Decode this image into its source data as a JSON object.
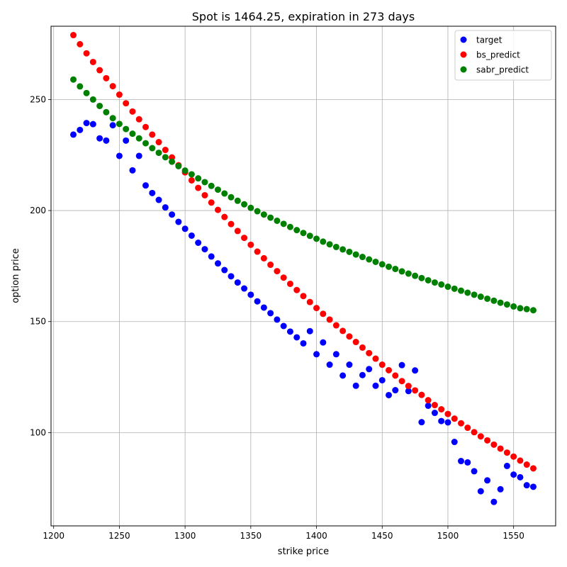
{
  "chart_data": {
    "type": "scatter",
    "title": "Spot is 1464.25, expiration in 273 days",
    "xlabel": "strike price",
    "ylabel": "option price",
    "xlim": [
      1198,
      1582
    ],
    "ylim": [
      58,
      283
    ],
    "xticks": [
      1200,
      1250,
      1300,
      1350,
      1400,
      1450,
      1500,
      1550
    ],
    "yticks": [
      100,
      150,
      200,
      250
    ],
    "grid": true,
    "legend_position": "top-right",
    "x": [
      1215,
      1220,
      1225,
      1230,
      1235,
      1240,
      1245,
      1250,
      1255,
      1260,
      1265,
      1270,
      1275,
      1280,
      1285,
      1290,
      1295,
      1300,
      1305,
      1310,
      1315,
      1320,
      1325,
      1330,
      1335,
      1340,
      1345,
      1350,
      1355,
      1360,
      1365,
      1370,
      1375,
      1380,
      1385,
      1390,
      1395,
      1400,
      1405,
      1410,
      1415,
      1420,
      1425,
      1430,
      1435,
      1440,
      1445,
      1450,
      1455,
      1460,
      1465,
      1470,
      1475,
      1480,
      1485,
      1490,
      1495,
      1500,
      1505,
      1510,
      1515,
      1520,
      1525,
      1530,
      1535,
      1540,
      1545,
      1550,
      1555,
      1560,
      1565
    ],
    "series": [
      {
        "name": "target",
        "color": "#0000ff",
        "values": [
          234.2,
          236.3,
          239.4,
          238.9,
          232.5,
          231.5,
          238.4,
          224.6,
          231.5,
          218.1,
          224.6,
          211.3,
          207.9,
          204.8,
          201.4,
          198.2,
          194.9,
          191.8,
          188.7,
          185.5,
          182.6,
          179.3,
          176.2,
          173.2,
          170.4,
          167.6,
          164.9,
          162.1,
          159.1,
          156.3,
          153.8,
          150.9,
          148.0,
          145.5,
          142.9,
          140.2,
          145.7,
          135.3,
          140.6,
          130.6,
          135.3,
          125.7,
          130.6,
          121.1,
          125.9,
          128.6,
          121.1,
          123.6,
          116.9,
          119.1,
          130.4,
          118.7,
          128.0,
          104.7,
          112.1,
          108.9,
          105.2,
          104.6,
          95.8,
          87.2,
          86.6,
          82.6,
          73.6,
          78.5,
          68.8,
          74.5,
          85.0,
          81.1,
          79.9,
          76.3,
          75.6
        ]
      },
      {
        "name": "bs_predict",
        "color": "#ff0000",
        "values": [
          279.0,
          274.9,
          270.8,
          266.9,
          263.2,
          259.6,
          256.0,
          252.2,
          248.3,
          244.6,
          241.1,
          237.6,
          234.2,
          230.8,
          227.3,
          223.9,
          220.4,
          217.2,
          213.6,
          210.2,
          206.9,
          203.6,
          200.3,
          197.1,
          193.9,
          190.8,
          187.7,
          184.6,
          181.5,
          178.5,
          175.6,
          172.7,
          169.8,
          167.0,
          164.2,
          161.5,
          158.8,
          156.1,
          153.5,
          150.9,
          148.3,
          145.8,
          143.3,
          140.8,
          138.3,
          135.8,
          133.3,
          130.6,
          128.1,
          125.7,
          123.2,
          121.0,
          119.0,
          117.0,
          114.6,
          112.4,
          110.5,
          108.4,
          106.3,
          104.2,
          102.2,
          100.2,
          98.3,
          96.5,
          94.6,
          92.8,
          91.0,
          89.2,
          87.4,
          85.6,
          83.9
        ]
      },
      {
        "name": "sabr_predict",
        "color": "#008000",
        "values": [
          259.0,
          255.9,
          252.9,
          250.0,
          247.1,
          244.3,
          241.6,
          239.0,
          236.7,
          234.6,
          232.5,
          230.3,
          228.1,
          226.0,
          224.0,
          222.0,
          220.0,
          218.0,
          216.3,
          214.5,
          212.8,
          211.1,
          209.4,
          207.7,
          206.0,
          204.4,
          202.8,
          201.2,
          199.7,
          198.2,
          196.8,
          195.4,
          194.0,
          192.6,
          191.2,
          189.9,
          188.6,
          187.3,
          186.0,
          184.8,
          183.6,
          182.5,
          181.4,
          180.2,
          179.1,
          178.0,
          176.9,
          175.8,
          174.7,
          173.7,
          172.6,
          171.6,
          170.6,
          169.6,
          168.6,
          167.6,
          166.7,
          165.7,
          164.8,
          163.9,
          163.0,
          162.1,
          161.2,
          160.3,
          159.4,
          158.5,
          157.7,
          156.8,
          156.0,
          155.6,
          155.1
        ]
      }
    ]
  }
}
